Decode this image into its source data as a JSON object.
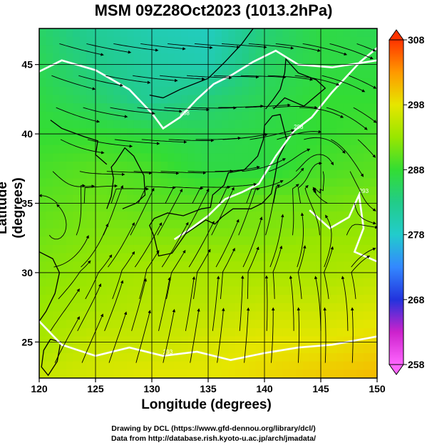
{
  "chart_data": {
    "type": "heatmap",
    "title": "MSM 09Z28Oct2023 (1013.2hPa)",
    "xlabel": "Longitude (degrees)",
    "ylabel": "Latitude  (degrees)",
    "xlim": [
      120,
      150
    ],
    "ylim": [
      22.4,
      47.6
    ],
    "xticks": [
      "120",
      "125",
      "130",
      "135",
      "140",
      "145",
      "150"
    ],
    "xtick_values": [
      120,
      125,
      130,
      135,
      140,
      145,
      150
    ],
    "yticks": [
      "25",
      "30",
      "35",
      "40",
      "45"
    ],
    "ytick_values": [
      25,
      30,
      35,
      40,
      45
    ],
    "grid": true,
    "overlay": "streamlines",
    "isotherm_labels": [
      "288",
      "293"
    ],
    "colorbar": {
      "label_values": [
        "308",
        "298",
        "288",
        "278",
        "268",
        "258"
      ],
      "range": [
        258,
        308
      ],
      "colors": [
        "#ff66ff",
        "#cc22cc",
        "#2233dd",
        "#3388ff",
        "#22cccc",
        "#22cc88",
        "#33dd33",
        "#99e600",
        "#e6e600",
        "#ff9900",
        "#ff3300"
      ]
    },
    "temperature_field_K": {
      "grid_lon": [
        120,
        125,
        130,
        135,
        140,
        145,
        150
      ],
      "grid_lat": [
        47.6,
        45,
        42.5,
        40,
        37.5,
        35,
        32.5,
        30,
        27.5,
        25,
        22.4
      ],
      "values": [
        [
          285,
          282,
          280,
          279,
          284,
          287,
          286
        ],
        [
          286,
          283,
          281,
          280,
          285,
          287,
          287
        ],
        [
          287,
          285,
          282,
          284,
          286,
          288,
          288
        ],
        [
          288,
          288,
          287,
          286,
          287,
          288,
          289
        ],
        [
          289,
          290,
          289,
          287,
          287,
          289,
          290
        ],
        [
          290,
          291,
          290,
          290,
          291,
          291,
          292
        ],
        [
          291,
          292,
          292,
          292,
          292,
          293,
          293
        ],
        [
          292,
          293,
          294,
          294,
          294,
          294,
          295
        ],
        [
          293,
          294,
          295,
          295,
          296,
          296,
          297
        ],
        [
          294,
          296,
          296,
          297,
          298,
          298,
          299
        ],
        [
          296,
          297,
          298,
          298,
          299,
          300,
          301
        ]
      ]
    }
  },
  "credits": {
    "line1": "Drawing by DCL (https://www.gfd-dennou.org/library/dcl/)",
    "line2": "Data from http://database.rish.kyoto-u.ac.jp/arch/jmadata/"
  }
}
